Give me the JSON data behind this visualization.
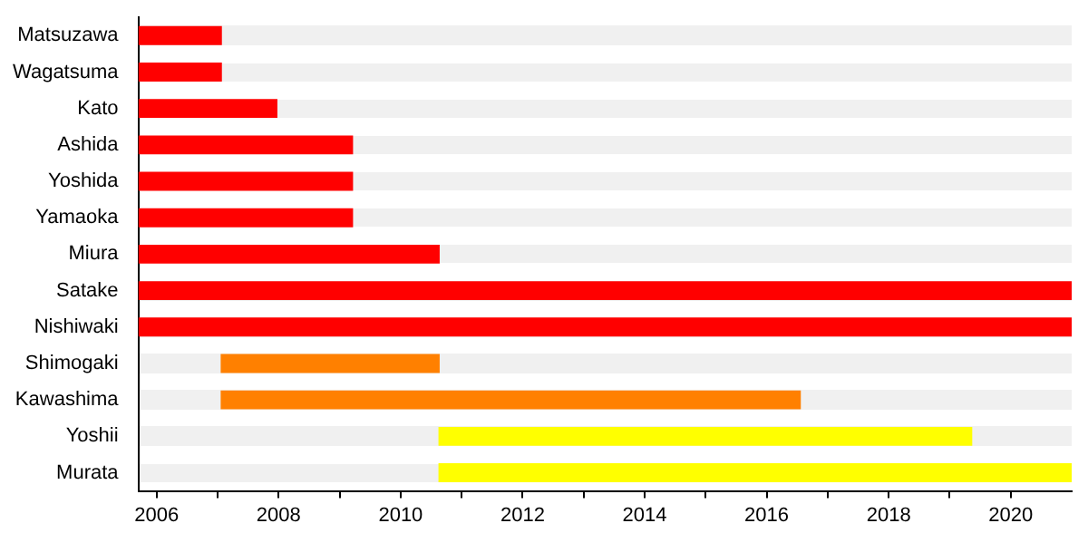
{
  "chart_data": {
    "type": "bar",
    "orientation": "horizontal",
    "categories": [
      "Matsuzawa",
      "Wagatsuma",
      "Kato",
      "Ashida",
      "Yoshida",
      "Yamaoka",
      "Miura",
      "Satake",
      "Nishiwaki",
      "Shimogaki",
      "Kawashima",
      "Yoshii",
      "Murata"
    ],
    "base": [
      2005.7,
      2005.7,
      2005.7,
      2005.7,
      2005.7,
      2005.7,
      2005.7,
      2005.7,
      2005.7,
      2007.05,
      2007.05,
      2010.62,
      2010.62
    ],
    "values": [
      1.37,
      1.37,
      2.28,
      3.52,
      3.52,
      3.52,
      4.94,
      15.3,
      15.3,
      3.59,
      9.51,
      8.75,
      10.38
    ],
    "colors": [
      "#ff0000",
      "#ff0000",
      "#ff0000",
      "#ff0000",
      "#ff0000",
      "#ff0000",
      "#ff0000",
      "#ff0000",
      "#ff0000",
      "#ff8000",
      "#ff8000",
      "#ffff00",
      "#ffff00"
    ],
    "xlim": [
      2005.7,
      2021
    ],
    "xticks": [
      2006,
      {
        "value": 2007,
        "label": null
      },
      2008,
      {
        "value": 2009,
        "label": null
      },
      2010,
      {
        "value": 2011,
        "label": null
      },
      2012,
      {
        "value": 2013,
        "label": null
      },
      2014,
      {
        "value": 2015,
        "label": null
      },
      2016,
      {
        "value": 2017,
        "label": null
      },
      2018,
      {
        "value": 2019,
        "label": null
      },
      2020
    ],
    "legend": false
  }
}
